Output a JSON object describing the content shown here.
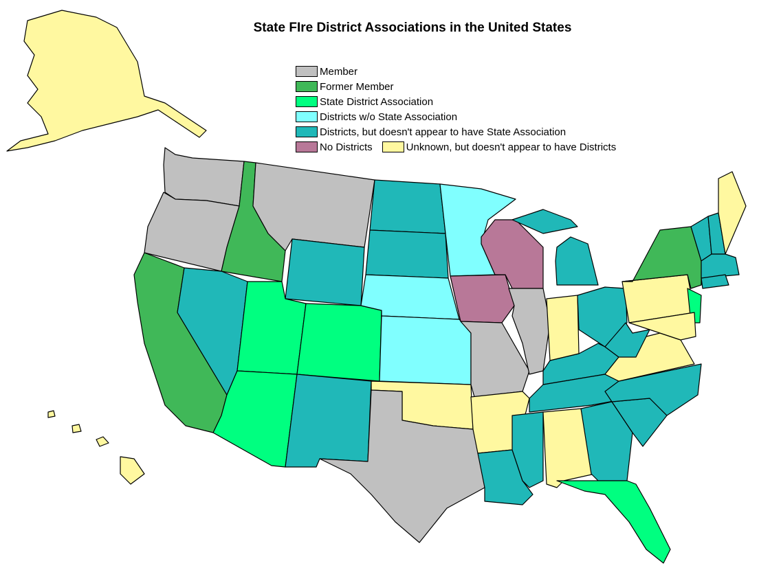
{
  "title": "State FIre District Associations in the United States",
  "legend": [
    {
      "key": "member",
      "label": "Member",
      "color": "#c0c0c0"
    },
    {
      "key": "former",
      "label": "Former Member",
      "color": "#40b858"
    },
    {
      "key": "assoc",
      "label": "State District Association",
      "color": "#00ff80"
    },
    {
      "key": "wo",
      "label": "Districts w/o State Association",
      "color": "#80ffff"
    },
    {
      "key": "teal",
      "label": "Districts, but doesn't appear to have State Association",
      "color": "#20b8b8"
    },
    {
      "key": "none",
      "label": "No Districts",
      "color": "#b87898"
    },
    {
      "key": "unknown",
      "label": "Unknown, but doesn't appear to have Districts",
      "color": "#fff8a0"
    }
  ],
  "state_categories": {
    "WA": "member",
    "OR": "member",
    "MT": "member",
    "TX": "member",
    "MO": "member",
    "IL": "member",
    "CA": "former",
    "ID": "former",
    "NY": "former",
    "UT": "assoc",
    "CO": "assoc",
    "AZ": "assoc",
    "NJ": "assoc",
    "FL": "assoc",
    "MN": "wo",
    "NE": "wo",
    "KS": "wo",
    "NV": "teal",
    "WY": "teal",
    "NM": "teal",
    "ND": "teal",
    "SD": "teal",
    "LA": "teal",
    "MS": "teal",
    "GA": "teal",
    "SC": "teal",
    "NC": "teal",
    "TN": "teal",
    "KY": "teal",
    "OH": "teal",
    "WV": "teal",
    "MI": "teal",
    "MIU": "teal",
    "VT": "teal",
    "NH": "teal",
    "MA": "teal",
    "CT": "teal",
    "WI": "none",
    "IA": "none",
    "AK": "unknown",
    "HI": "unknown",
    "OK": "unknown",
    "AR": "unknown",
    "AL": "unknown",
    "IN": "unknown",
    "PA": "unknown",
    "VA": "unknown",
    "MD": "unknown",
    "ME": "unknown"
  }
}
